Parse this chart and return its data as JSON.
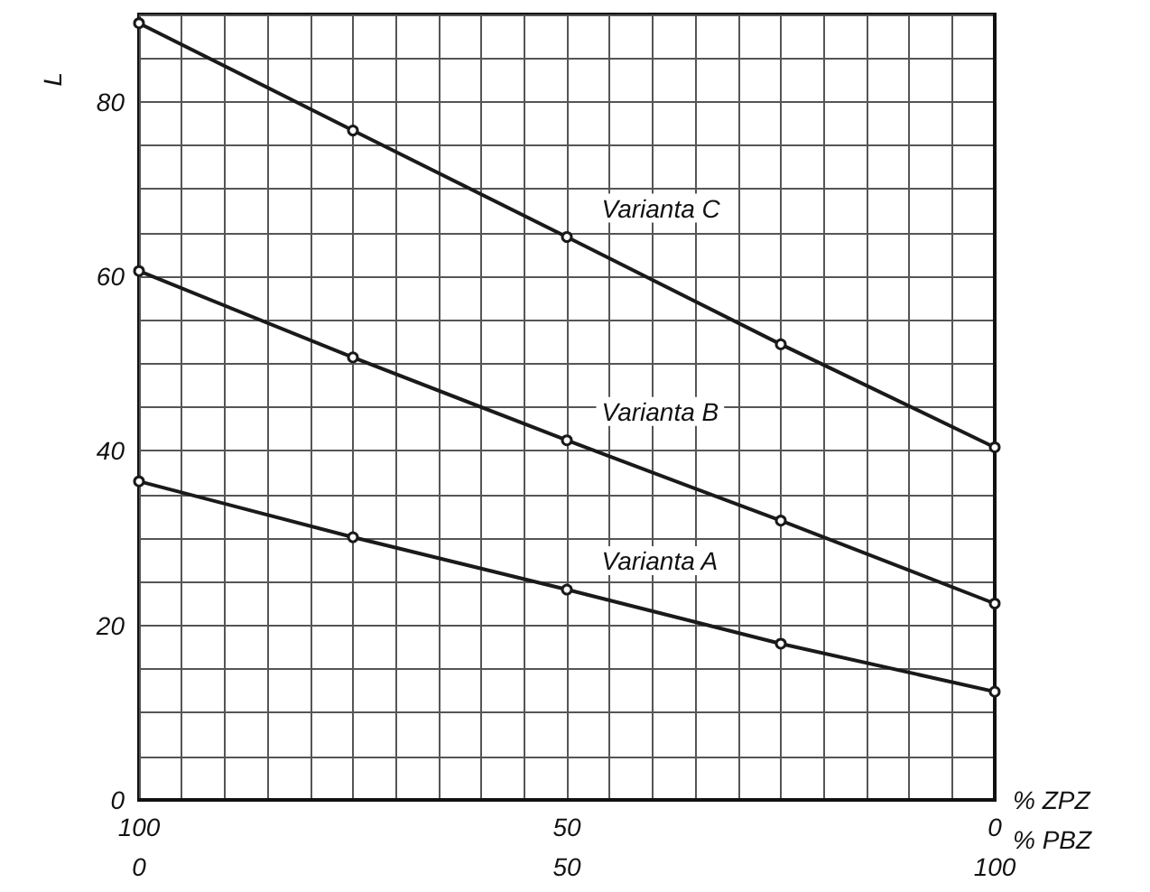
{
  "chart_data": {
    "type": "line",
    "xlabel": "% ZPZ",
    "x2label": "% PBZ",
    "ylabel": "L",
    "x": [
      100,
      75,
      50,
      25,
      0
    ],
    "series": [
      {
        "name": "Varianta C",
        "color": "#1a1a1a",
        "values": [
          89,
          76.7,
          64.5,
          52.2,
          40.4
        ]
      },
      {
        "name": "Varianta B",
        "color": "#1a1a1a",
        "values": [
          60.6,
          50.7,
          41.2,
          32,
          22.5
        ]
      },
      {
        "name": "Varianta A",
        "color": "#1a1a1a",
        "values": [
          36.5,
          30.1,
          24.1,
          17.9,
          12.4
        ]
      }
    ],
    "xlim": [
      100,
      0
    ],
    "xticks": [
      100,
      {
        "value": 95,
        "label": null
      },
      {
        "value": 90,
        "label": null
      },
      {
        "value": 85,
        "label": null
      },
      {
        "value": 80,
        "label": null
      },
      {
        "value": 75,
        "label": null
      },
      {
        "value": 70,
        "label": null
      },
      {
        "value": 65,
        "label": null
      },
      {
        "value": 60,
        "label": null
      },
      {
        "value": 55,
        "label": null
      },
      50,
      {
        "value": 45,
        "label": null
      },
      {
        "value": 40,
        "label": null
      },
      {
        "value": 35,
        "label": null
      },
      {
        "value": 30,
        "label": null
      },
      {
        "value": 25,
        "label": null
      },
      {
        "value": 20,
        "label": null
      },
      {
        "value": 15,
        "label": null
      },
      {
        "value": 10,
        "label": null
      },
      {
        "value": 5,
        "label": null
      },
      0
    ],
    "x2lim": [
      0,
      100
    ],
    "x2ticks": [
      0,
      50,
      100
    ],
    "ylim": [
      0,
      90
    ],
    "yticks": [
      0,
      {
        "value": 5,
        "label": null
      },
      {
        "value": 10,
        "label": null
      },
      {
        "value": 15,
        "label": null
      },
      20,
      {
        "value": 25,
        "label": null
      },
      {
        "value": 30,
        "label": null
      },
      {
        "value": 35,
        "label": null
      },
      40,
      {
        "value": 45,
        "label": null
      },
      {
        "value": 50,
        "label": null
      },
      {
        "value": 55,
        "label": null
      },
      60,
      {
        "value": 65,
        "label": null
      },
      {
        "value": 70,
        "label": null
      },
      {
        "value": 75,
        "label": null
      },
      80,
      {
        "value": 85,
        "label": null
      },
      {
        "value": 90,
        "label": null
      }
    ],
    "grid": true,
    "legend": false,
    "marker": "circle",
    "line_style": "solid"
  }
}
